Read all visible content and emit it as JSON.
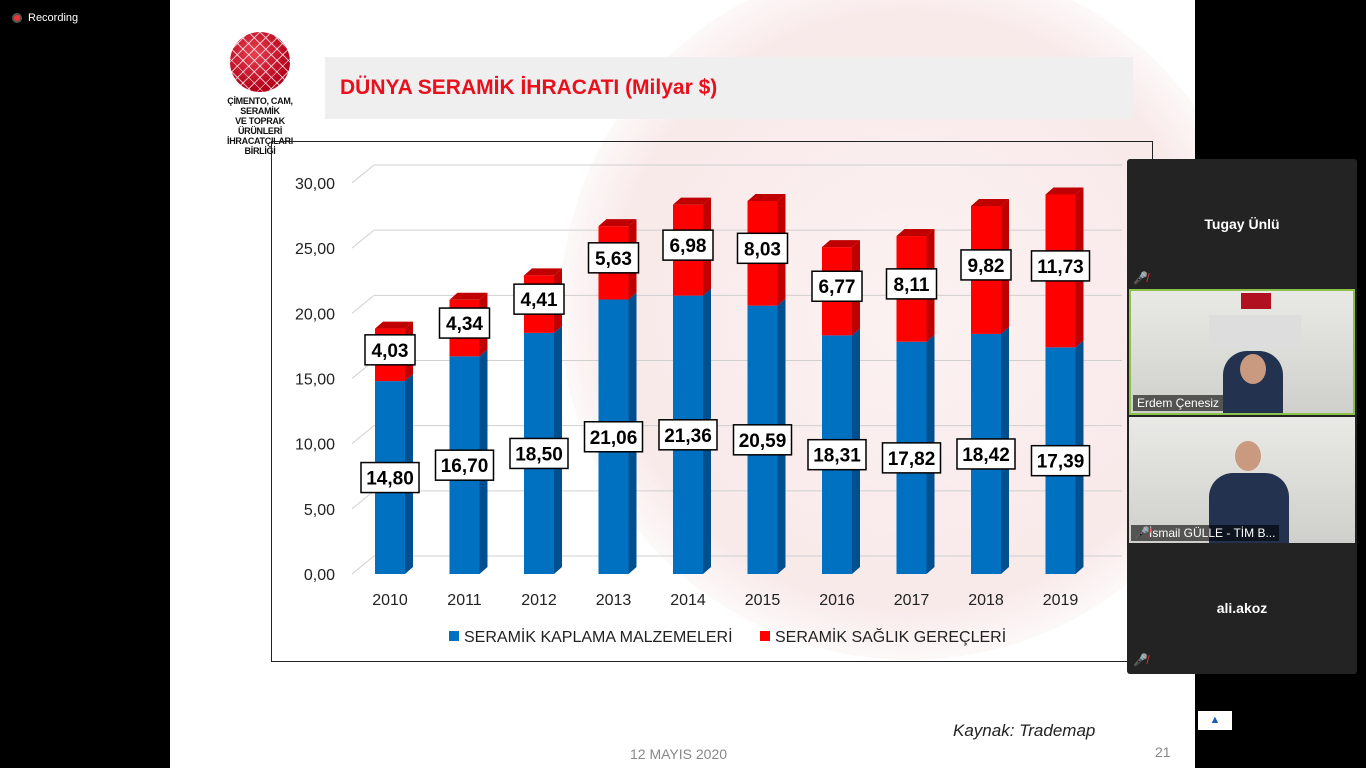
{
  "recording": {
    "label": "Recording"
  },
  "slide": {
    "logo_text": "ÇİMENTO, CAM, SERAMİK\nVE TOPRAK ÜRÜNLERİ\nİHRACATÇILARI BİRLİĞİ",
    "title": "DÜNYA SERAMİK İHRACATI (Milyar $)",
    "source": "Kaynak: Trademap",
    "date": "12 MAYIS 2020",
    "page": "21"
  },
  "chart_data": {
    "type": "bar",
    "stacked": true,
    "title": "",
    "categories": [
      "2010",
      "2011",
      "2012",
      "2013",
      "2014",
      "2015",
      "2016",
      "2017",
      "2018",
      "2019"
    ],
    "series": [
      {
        "name": "SERAMİK KAPLAMA MALZEMELERİ",
        "color": "#0070c0",
        "values": [
          14.8,
          16.7,
          18.5,
          21.06,
          21.36,
          20.59,
          18.31,
          17.82,
          18.42,
          17.39
        ],
        "labels": [
          "14,80",
          "16,70",
          "18,50",
          "21,06",
          "21,36",
          "20,59",
          "18,31",
          "17,82",
          "18,42",
          "17,39"
        ]
      },
      {
        "name": "SERAMİK SAĞLIK GEREÇLERİ",
        "color": "#ff0000",
        "values": [
          4.03,
          4.34,
          4.41,
          5.63,
          6.98,
          8.03,
          6.77,
          8.11,
          9.82,
          11.73
        ],
        "labels": [
          "4,03",
          "4,34",
          "4,41",
          "5,63",
          "6,98",
          "8,03",
          "6,77",
          "8,11",
          "9,82",
          "11,73"
        ]
      }
    ],
    "yticks": [
      "0,00",
      "5,00",
      "10,00",
      "15,00",
      "20,00",
      "25,00",
      "30,00"
    ],
    "ylim": [
      0,
      30
    ],
    "grid": true,
    "legend": "bottom"
  },
  "participants": [
    {
      "name": "Tugay Ünlü",
      "video": false,
      "muted": true
    },
    {
      "name": "Erdem Çenesiz",
      "video": true,
      "muted": false,
      "active": true
    },
    {
      "name": "İsmail GÜLLE - TİM B...",
      "video": true,
      "muted": true
    },
    {
      "name": "ali.akoz",
      "video": false,
      "muted": true
    }
  ],
  "controls": {
    "up_arrow": "▲"
  }
}
